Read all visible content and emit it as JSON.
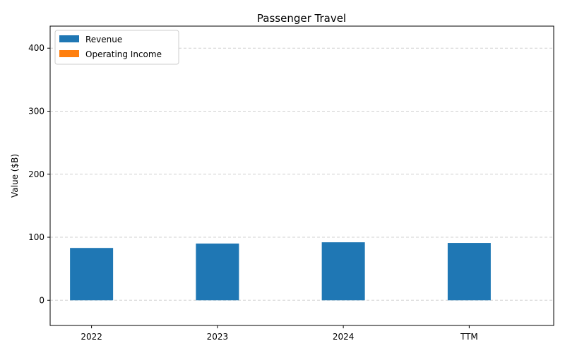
{
  "chart_data": {
    "type": "bar",
    "title": "Passenger Travel",
    "xlabel": "",
    "ylabel": "Value ($B)",
    "categories": [
      "2022",
      "2023",
      "2024",
      "TTM"
    ],
    "series": [
      {
        "name": "Revenue",
        "values": [
          83,
          90,
          92,
          91
        ],
        "color": "#1f77b4"
      },
      {
        "name": "Operating Income",
        "values": [
          0,
          0,
          0,
          0
        ],
        "color": "#ff7f0e"
      }
    ],
    "ylim": [
      -40,
      435
    ],
    "yticks": [
      0,
      100,
      200,
      300,
      400
    ],
    "grid": "y-dashed",
    "legend_position": "top-left"
  }
}
